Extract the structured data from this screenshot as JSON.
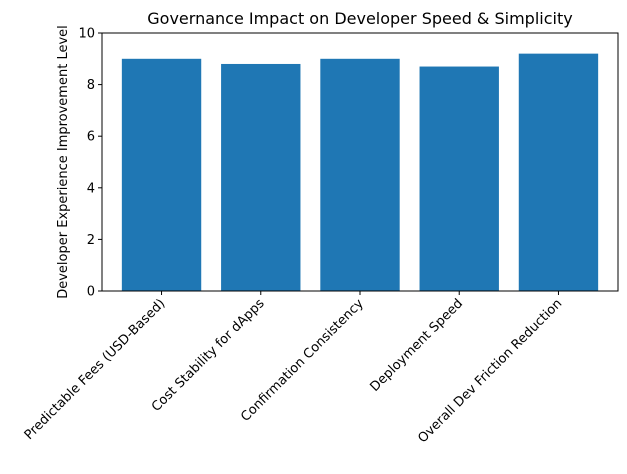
{
  "chart_data": {
    "type": "bar",
    "title": "Governance Impact on Developer Speed & Simplicity",
    "xlabel": "",
    "ylabel": "Developer Experience Improvement Level",
    "categories": [
      "Predictable Fees (USD-Based)",
      "Cost Stability for dApps",
      "Confirmation Consistency",
      "Deployment Speed",
      "Overall Dev Friction Reduction"
    ],
    "values": [
      9.0,
      8.8,
      9.0,
      8.7,
      9.2
    ],
    "ylim": [
      0,
      10
    ],
    "yticks": [
      "0",
      "2",
      "4",
      "6",
      "8",
      "10"
    ],
    "grid": false,
    "bar_color": "#1f77b4"
  }
}
